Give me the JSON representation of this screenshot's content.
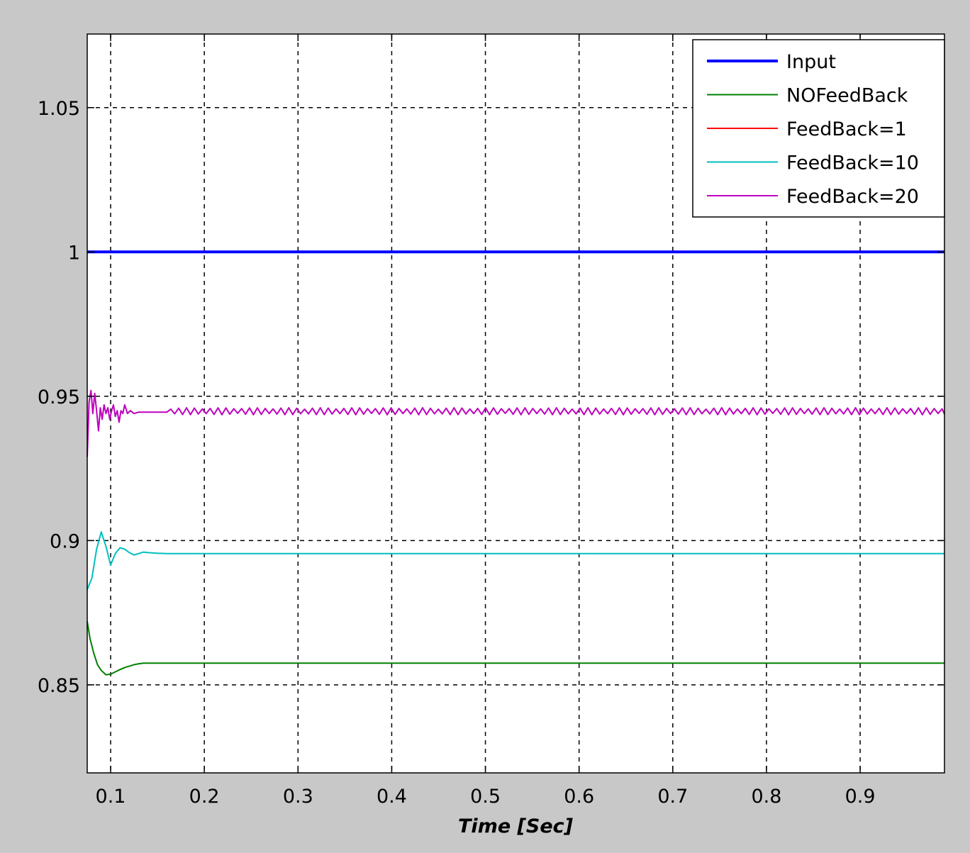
{
  "chart_data": {
    "type": "line",
    "title": "",
    "xlabel": "Time [Sec]",
    "ylabel": "",
    "xlim": [
      0.075,
      0.99
    ],
    "ylim": [
      0.8195,
      1.0755
    ],
    "grid": true,
    "legend_position": "top-right",
    "x_ticks": [
      0.1,
      0.2,
      0.3,
      0.4,
      0.5,
      0.6,
      0.7,
      0.8,
      0.9
    ],
    "x_tick_labels": [
      "0.1",
      "0.2",
      "0.3",
      "0.4",
      "0.5",
      "0.6",
      "0.7",
      "0.8",
      "0.9"
    ],
    "y_ticks": [
      0.85,
      0.9,
      0.95,
      1,
      1.05
    ],
    "y_tick_labels": [
      "0.85",
      "0.9",
      "0.95",
      "1",
      "1.05"
    ],
    "series": [
      {
        "name": "Input",
        "color": "#0000ff",
        "x": [
          0.075,
          0.99
        ],
        "y": [
          1.0,
          1.0
        ]
      },
      {
        "name": "NOFeedBack",
        "color": "#008000",
        "x": [
          0.075,
          0.078,
          0.082,
          0.086,
          0.09,
          0.095,
          0.1,
          0.105,
          0.11,
          0.115,
          0.12,
          0.125,
          0.13,
          0.135,
          0.99
        ],
        "y": [
          0.872,
          0.866,
          0.861,
          0.857,
          0.855,
          0.8535,
          0.8537,
          0.8545,
          0.8553,
          0.856,
          0.8565,
          0.857,
          0.8573,
          0.8575,
          0.8575
        ]
      },
      {
        "name": "FeedBack=1",
        "color": "#ff0000",
        "x": [],
        "y": []
      },
      {
        "name": "FeedBack=10",
        "color": "#00bfbf",
        "x": [
          0.075,
          0.08,
          0.085,
          0.09,
          0.095,
          0.1,
          0.105,
          0.11,
          0.115,
          0.12,
          0.125,
          0.13,
          0.135,
          0.14,
          0.15,
          0.16,
          0.17,
          0.99
        ],
        "y": [
          0.883,
          0.887,
          0.897,
          0.903,
          0.898,
          0.8915,
          0.8955,
          0.8975,
          0.897,
          0.8958,
          0.895,
          0.8955,
          0.896,
          0.8958,
          0.8956,
          0.8955,
          0.8955,
          0.8955
        ]
      },
      {
        "name": "FeedBack=20",
        "color": "#bf00bf",
        "x": [
          0.075,
          0.077,
          0.079,
          0.081,
          0.083,
          0.085,
          0.087,
          0.089,
          0.091,
          0.093,
          0.095,
          0.097,
          0.099,
          0.101,
          0.103,
          0.105,
          0.107,
          0.109,
          0.111,
          0.113,
          0.115,
          0.118,
          0.121,
          0.125,
          0.13,
          0.14,
          0.15,
          0.16
        ],
        "y": [
          0.929,
          0.948,
          0.952,
          0.944,
          0.951,
          0.945,
          0.938,
          0.946,
          0.942,
          0.947,
          0.944,
          0.946,
          0.942,
          0.945,
          0.947,
          0.943,
          0.945,
          0.941,
          0.945,
          0.944,
          0.947,
          0.944,
          0.945,
          0.944,
          0.9445,
          0.9445,
          0.9445,
          0.9445
        ],
        "steady_value": 0.9448,
        "ripple_amplitude": 0.0012,
        "ripple_end_x": 0.99
      }
    ]
  }
}
